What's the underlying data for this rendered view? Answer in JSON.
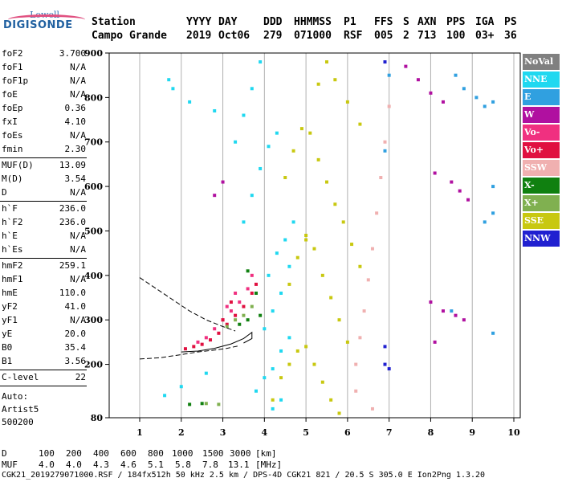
{
  "logo": {
    "top": "Lowell",
    "main": "DIGISONDE"
  },
  "header": {
    "labels": [
      "Station",
      "YYYY",
      "DAY",
      "DDD",
      "HHMMSS",
      "P1",
      "FFS",
      "S",
      "AXN",
      "PPS",
      "IGA",
      "PS"
    ],
    "values": [
      "Campo Grande",
      "2019",
      "Oct06",
      "279",
      "071000",
      "RSF",
      "005",
      "2",
      "713",
      "100",
      "03+",
      "36"
    ]
  },
  "params": {
    "group1": [
      {
        "name": "foF2",
        "value": "3.700"
      },
      {
        "name": "foF1",
        "value": "N/A"
      },
      {
        "name": "foF1p",
        "value": "N/A"
      },
      {
        "name": "foE",
        "value": "N/A"
      },
      {
        "name": "foEp",
        "value": "0.36"
      },
      {
        "name": "fxI",
        "value": "4.10"
      },
      {
        "name": "foEs",
        "value": "N/A"
      },
      {
        "name": "fmin",
        "value": "2.30"
      }
    ],
    "group2": [
      {
        "name": "MUF(D)",
        "value": "13.09"
      },
      {
        "name": "M(D)",
        "value": "3.54"
      },
      {
        "name": "D",
        "value": "N/A"
      }
    ],
    "group3": [
      {
        "name": "h`F",
        "value": "236.0"
      },
      {
        "name": "h`F2",
        "value": "236.0"
      },
      {
        "name": "h`E",
        "value": "N/A"
      },
      {
        "name": "h`Es",
        "value": "N/A"
      }
    ],
    "group4": [
      {
        "name": "hmF2",
        "value": "259.1"
      },
      {
        "name": "hmF1",
        "value": "N/A"
      },
      {
        "name": "hmE",
        "value": "110.0"
      },
      {
        "name": "yF2",
        "value": "41.0"
      },
      {
        "name": "yF1",
        "value": "N/A"
      },
      {
        "name": "yE",
        "value": "20.0"
      },
      {
        "name": "B0",
        "value": "35.4"
      },
      {
        "name": "B1",
        "value": "3.56"
      }
    ],
    "clevel": {
      "name": "C-level",
      "value": "22"
    },
    "auto": [
      "Auto:",
      "Artist5",
      "500200"
    ]
  },
  "legend": [
    {
      "label": "NoVal",
      "color": "#808080"
    },
    {
      "label": "NNE",
      "color": "#20d8f0"
    },
    {
      "label": "E",
      "color": "#30a0e0"
    },
    {
      "label": "W",
      "color": "#b010a0"
    },
    {
      "label": "Vo-",
      "color": "#f03080"
    },
    {
      "label": "Vo+",
      "color": "#e01040"
    },
    {
      "label": "SSW",
      "color": "#f0b0b0"
    },
    {
      "label": "X-",
      "color": "#108010"
    },
    {
      "label": "X+",
      "color": "#80b050"
    },
    {
      "label": "SSE",
      "color": "#c8c810"
    },
    {
      "label": "NNW",
      "color": "#2020d0"
    }
  ],
  "dmuf": {
    "d_label": "D",
    "d_values": [
      "100",
      "200",
      "400",
      "600",
      "800",
      "1000",
      "1500",
      "3000",
      "[km]"
    ],
    "muf_label": "MUF",
    "muf_values": [
      "4.0",
      "4.0",
      "4.3",
      "4.6",
      "5.1",
      "5.8",
      "7.8",
      "13.1",
      "[MHz]"
    ]
  },
  "footer": "CGK21_2019279071000.RSF / 184fx512h 50 kHz 2.5 km / DPS-4D CGK21 821 / 20.5 S 305.0 E Ion2Png 1.3.20",
  "chart_data": {
    "type": "scatter",
    "title": "",
    "xlabel": "",
    "ylabel": "",
    "xlim": [
      1,
      10
    ],
    "ylim": [
      80,
      900
    ],
    "xticks": [
      1,
      2,
      3,
      4,
      5,
      6,
      7,
      8,
      9,
      10
    ],
    "yticks": [
      80,
      200,
      300,
      400,
      500,
      600,
      700,
      800,
      900
    ],
    "grid": "vertical",
    "legend_position": "right",
    "series": [
      {
        "name": "NNE",
        "color": "#20d8f0",
        "points": [
          [
            1.7,
            840
          ],
          [
            1.8,
            820
          ],
          [
            2.2,
            790
          ],
          [
            2.8,
            770
          ],
          [
            3.3,
            700
          ],
          [
            3.5,
            760
          ],
          [
            3.7,
            820
          ],
          [
            3.9,
            880
          ],
          [
            3.5,
            520
          ],
          [
            3.7,
            580
          ],
          [
            3.9,
            640
          ],
          [
            4.1,
            690
          ],
          [
            4.3,
            720
          ],
          [
            4.1,
            400
          ],
          [
            4.3,
            450
          ],
          [
            4.5,
            480
          ],
          [
            4.7,
            520
          ],
          [
            4.0,
            280
          ],
          [
            4.2,
            320
          ],
          [
            4.4,
            360
          ],
          [
            4.6,
            420
          ],
          [
            3.8,
            140
          ],
          [
            4.0,
            170
          ],
          [
            4.2,
            190
          ],
          [
            4.4,
            230
          ],
          [
            4.6,
            260
          ],
          [
            4.2,
            100
          ],
          [
            4.4,
            120
          ],
          [
            1.6,
            130
          ],
          [
            2.0,
            150
          ],
          [
            2.6,
            180
          ]
        ]
      },
      {
        "name": "E",
        "color": "#30a0e0",
        "points": [
          [
            8.6,
            850
          ],
          [
            8.8,
            820
          ],
          [
            9.1,
            800
          ],
          [
            9.3,
            780
          ],
          [
            9.5,
            790
          ],
          [
            9.3,
            520
          ],
          [
            9.5,
            600
          ],
          [
            9.5,
            540
          ],
          [
            9.5,
            270
          ],
          [
            8.5,
            320
          ],
          [
            7.0,
            850
          ],
          [
            6.9,
            680
          ]
        ]
      },
      {
        "name": "W",
        "color": "#b010a0",
        "points": [
          [
            7.4,
            870
          ],
          [
            7.7,
            840
          ],
          [
            8.0,
            810
          ],
          [
            8.3,
            790
          ],
          [
            8.5,
            610
          ],
          [
            8.7,
            590
          ],
          [
            8.9,
            570
          ],
          [
            8.1,
            630
          ],
          [
            8.0,
            340
          ],
          [
            8.3,
            320
          ],
          [
            8.6,
            310
          ],
          [
            8.8,
            300
          ],
          [
            8.1,
            250
          ],
          [
            3.0,
            610
          ],
          [
            2.8,
            580
          ]
        ]
      },
      {
        "name": "Vo-",
        "color": "#f03080",
        "points": [
          [
            2.4,
            250
          ],
          [
            2.6,
            260
          ],
          [
            2.8,
            280
          ],
          [
            3.0,
            300
          ],
          [
            3.2,
            320
          ],
          [
            3.4,
            340
          ],
          [
            3.6,
            370
          ],
          [
            3.7,
            400
          ],
          [
            3.1,
            330
          ],
          [
            3.3,
            360
          ]
        ]
      },
      {
        "name": "Vo+",
        "color": "#e01040",
        "points": [
          [
            2.1,
            235
          ],
          [
            2.3,
            240
          ],
          [
            2.5,
            245
          ],
          [
            2.7,
            255
          ],
          [
            2.9,
            270
          ],
          [
            3.1,
            290
          ],
          [
            3.3,
            310
          ],
          [
            3.5,
            330
          ],
          [
            3.7,
            360
          ],
          [
            3.8,
            380
          ],
          [
            3.0,
            300
          ],
          [
            3.2,
            340
          ]
        ]
      },
      {
        "name": "SSW",
        "color": "#f0b0b0",
        "points": [
          [
            6.2,
            200
          ],
          [
            6.3,
            260
          ],
          [
            6.4,
            320
          ],
          [
            6.5,
            390
          ],
          [
            6.6,
            460
          ],
          [
            6.7,
            540
          ],
          [
            6.8,
            620
          ],
          [
            6.9,
            700
          ],
          [
            7.0,
            780
          ],
          [
            6.2,
            140
          ],
          [
            6.6,
            100
          ]
        ]
      },
      {
        "name": "X-",
        "color": "#108010",
        "points": [
          [
            3.8,
            360
          ],
          [
            3.9,
            310
          ],
          [
            3.6,
            300
          ],
          [
            3.4,
            290
          ],
          [
            2.2,
            110
          ],
          [
            2.5,
            112
          ],
          [
            3.6,
            410
          ]
        ]
      },
      {
        "name": "X+",
        "color": "#80b050",
        "points": [
          [
            3.7,
            330
          ],
          [
            3.5,
            310
          ],
          [
            3.3,
            300
          ],
          [
            3.1,
            285
          ],
          [
            2.6,
            112
          ],
          [
            2.9,
            110
          ]
        ]
      },
      {
        "name": "SSE",
        "color": "#c8c810",
        "points": [
          [
            4.6,
            380
          ],
          [
            4.8,
            440
          ],
          [
            5.0,
            490
          ],
          [
            5.2,
            460
          ],
          [
            5.4,
            400
          ],
          [
            5.6,
            350
          ],
          [
            5.8,
            300
          ],
          [
            6.0,
            250
          ],
          [
            5.0,
            480
          ],
          [
            4.5,
            620
          ],
          [
            4.7,
            680
          ],
          [
            4.9,
            730
          ],
          [
            5.1,
            720
          ],
          [
            5.3,
            660
          ],
          [
            5.5,
            610
          ],
          [
            5.7,
            560
          ],
          [
            5.9,
            520
          ],
          [
            6.1,
            470
          ],
          [
            6.3,
            420
          ],
          [
            5.3,
            830
          ],
          [
            5.5,
            880
          ],
          [
            5.7,
            840
          ],
          [
            6.0,
            790
          ],
          [
            6.3,
            740
          ],
          [
            4.2,
            120
          ],
          [
            4.4,
            170
          ],
          [
            4.6,
            200
          ],
          [
            4.8,
            230
          ],
          [
            5.0,
            240
          ],
          [
            5.2,
            200
          ],
          [
            5.4,
            160
          ],
          [
            5.6,
            120
          ],
          [
            5.8,
            90
          ]
        ]
      },
      {
        "name": "NNW",
        "color": "#2020d0",
        "points": [
          [
            6.9,
            880
          ],
          [
            6.9,
            240
          ],
          [
            6.9,
            200
          ],
          [
            7.0,
            190
          ]
        ]
      }
    ]
  }
}
